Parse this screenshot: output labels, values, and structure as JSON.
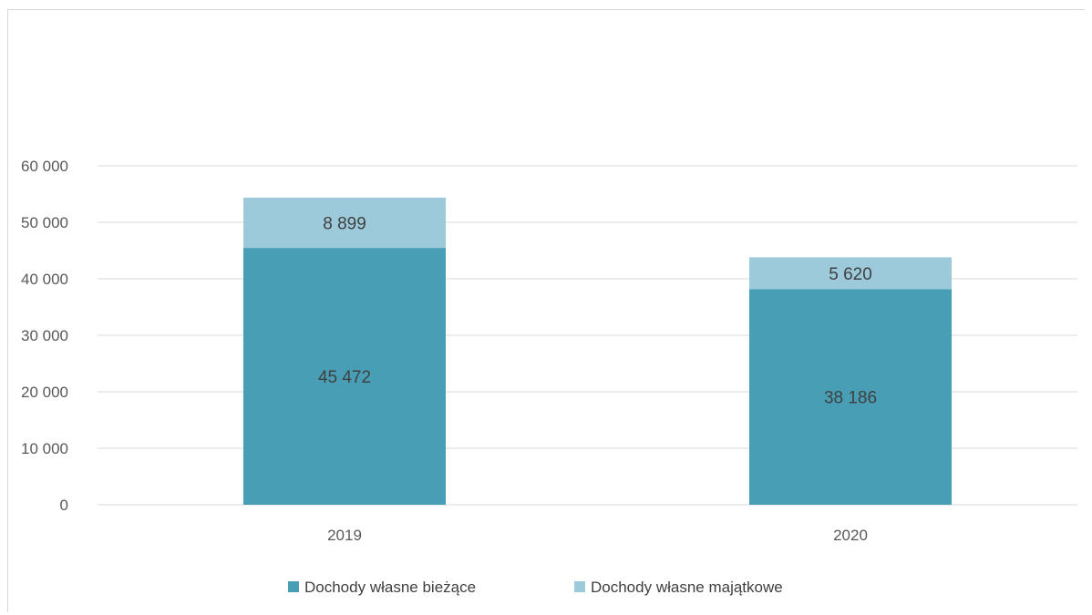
{
  "chart_data": {
    "type": "bar",
    "stacked": true,
    "categories": [
      "2019",
      "2020"
    ],
    "series": [
      {
        "name": "Dochody własne bieżące",
        "values": [
          45472,
          38186
        ],
        "labels": [
          "45 472",
          "38 186"
        ],
        "color": "#489fb5"
      },
      {
        "name": "Dochody własne majątkowe",
        "values": [
          8899,
          5620
        ],
        "labels": [
          "8 899",
          "5 620"
        ],
        "color": "#9ccadb"
      }
    ],
    "yticks": [
      0,
      10000,
      20000,
      30000,
      40000,
      50000,
      60000
    ],
    "ytick_labels": [
      "0",
      "10 000",
      "20 000",
      "30 000",
      "40 000",
      "50 000",
      "60 000"
    ],
    "ylim": [
      0,
      60000
    ],
    "grid": true,
    "legend": "bottom",
    "gridline_color": "#d9d9d9"
  }
}
